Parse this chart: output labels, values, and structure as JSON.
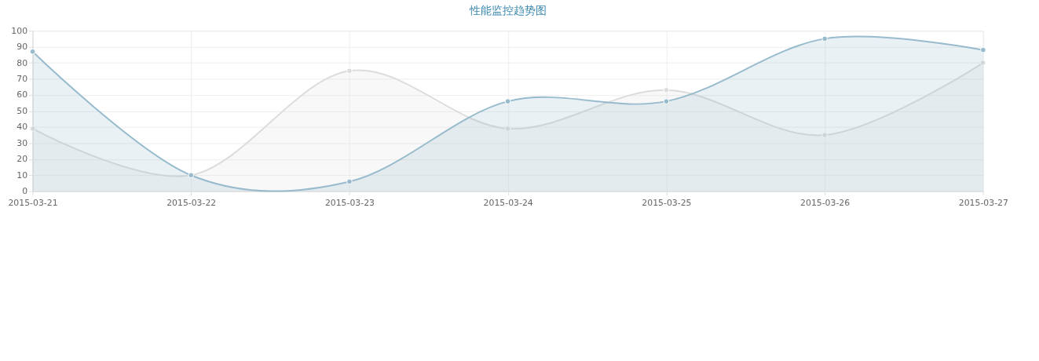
{
  "chart_data": {
    "type": "area",
    "title": "性能监控趋势图",
    "categories": [
      "2015-03-21",
      "2015-03-22",
      "2015-03-23",
      "2015-03-24",
      "2015-03-25",
      "2015-03-26",
      "2015-03-27"
    ],
    "series": [
      {
        "color": "#dcdcdc",
        "values": [
          39,
          10,
          75,
          39,
          63,
          35,
          80
        ]
      },
      {
        "color": "#97bbcd",
        "values": [
          87,
          10,
          6,
          56,
          56,
          95,
          88
        ]
      }
    ],
    "ylim": [
      0,
      100
    ],
    "yticks": [
      0,
      10,
      20,
      30,
      40,
      50,
      60,
      70,
      80,
      90,
      100
    ],
    "grid": true,
    "marker": "circle",
    "line_style": "solid",
    "legend": false
  }
}
